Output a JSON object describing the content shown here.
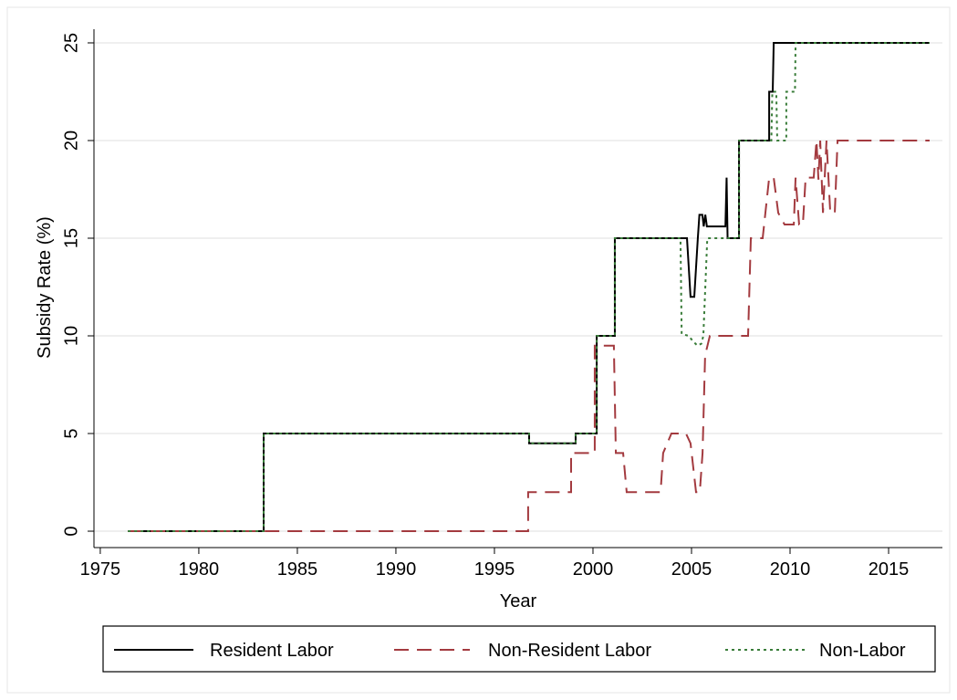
{
  "chart_data": {
    "type": "line",
    "x_label": "Year",
    "y_label": "Subsidy Rate (%)",
    "xlim": [
      1974.68,
      2017.73
    ],
    "xticks": [
      1975,
      1980,
      1985,
      1990,
      1995,
      2000,
      2005,
      2010,
      2015
    ],
    "ylim": [
      -0.84,
      25.7
    ],
    "yticks": [
      0,
      5,
      10,
      15,
      20,
      25
    ],
    "grid": true,
    "legend": "bottom",
    "series": [
      {
        "name": "Resident Labor",
        "color": "#000000",
        "dash": "solid",
        "x": [
          1976.4,
          1983.29,
          1983.29,
          1996.76,
          1996.76,
          1999.12,
          1999.12,
          2000.19,
          2000.19,
          2001.11,
          2001.11,
          2004.77,
          2004.95,
          2005.14,
          2005.23,
          2005.32,
          2005.4,
          2005.55,
          2005.62,
          2005.7,
          2005.78,
          2006.72,
          2006.78,
          2006.83,
          2007.41,
          2007.41,
          2008.94,
          2008.94,
          2009.12,
          2009.17,
          2017.08
        ],
        "values": [
          0,
          0,
          5,
          5,
          4.5,
          4.5,
          5,
          5,
          10,
          10,
          15,
          15,
          12,
          12,
          13.5,
          15,
          16.2,
          16.2,
          15.6,
          16.2,
          15.6,
          15.6,
          18.1,
          15,
          15,
          20,
          20,
          22.5,
          22.5,
          25,
          25
        ]
      },
      {
        "name": "Non-Resident Labor",
        "color": "#a33a3f",
        "dash": "dashed",
        "x": [
          1976.4,
          1996.71,
          1996.71,
          1998.89,
          1998.89,
          2000.09,
          2000.09,
          2001.06,
          2001.16,
          2001.53,
          2001.71,
          2003.43,
          2003.56,
          2003.98,
          2004.72,
          2004.95,
          2005.23,
          2005.42,
          2005.56,
          2005.69,
          2005.93,
          2007.87,
          2008.01,
          2008.61,
          2008.94,
          2009.17,
          2009.4,
          2009.72,
          2010.19,
          2010.28,
          2010.46,
          2010.65,
          2010.79,
          2011.2,
          2011.34,
          2011.44,
          2011.53,
          2011.67,
          2011.85,
          2012.04,
          2012.27,
          2012.41,
          2017.08
        ],
        "values": [
          0,
          0,
          2,
          2,
          4,
          4,
          9.5,
          9.5,
          4,
          4,
          2,
          2,
          4,
          5,
          5,
          4.5,
          2,
          2,
          4,
          9,
          10,
          10,
          15,
          15,
          18.1,
          18.1,
          16.3,
          15.7,
          15.7,
          18.1,
          15.7,
          15.7,
          18.1,
          18.1,
          20,
          18,
          20,
          16.3,
          20,
          16.3,
          16.3,
          20,
          20
        ]
      },
      {
        "name": "Non-Labor",
        "color": "#3a7d3a",
        "dash": "dotted",
        "x": [
          1976.4,
          1983.29,
          1983.29,
          1996.76,
          1996.76,
          1999.12,
          1999.12,
          2000.19,
          2000.19,
          2001.11,
          2001.11,
          2004.44,
          2004.5,
          2004.85,
          2005.1,
          2005.3,
          2005.5,
          2005.6,
          2005.8,
          2007.41,
          2007.41,
          2009.05,
          2009.1,
          2009.3,
          2009.35,
          2009.81,
          2009.81,
          2010.25,
          2010.28,
          2017.08
        ],
        "values": [
          0,
          0,
          5,
          5,
          4.5,
          4.5,
          5,
          5,
          10,
          10,
          15,
          15,
          10.1,
          10,
          9.7,
          9.5,
          9.6,
          10,
          15,
          15,
          20,
          20,
          22.5,
          22.5,
          20,
          20,
          22.5,
          22.5,
          25,
          25
        ]
      }
    ]
  }
}
